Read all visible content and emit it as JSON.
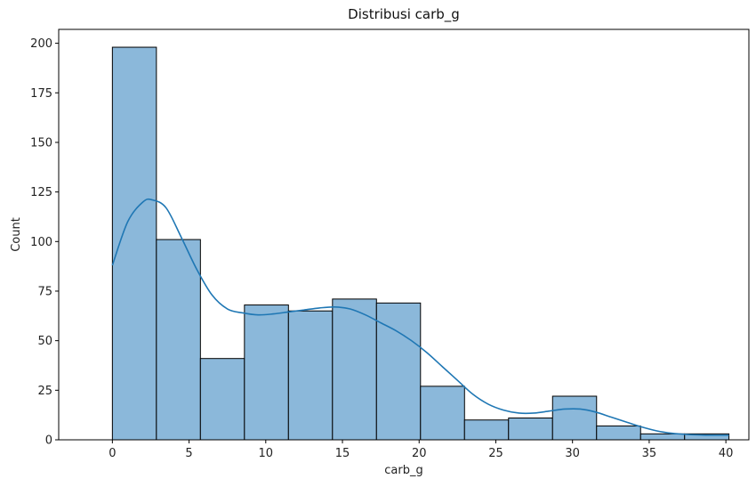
{
  "chart_data": {
    "type": "bar",
    "title": "Distribusi carb_g",
    "xlabel": "carb_g",
    "ylabel": "Count",
    "xlim": [
      -3.5,
      41.5
    ],
    "ylim": [
      0,
      207
    ],
    "xticks": [
      0,
      5,
      10,
      15,
      20,
      25,
      30,
      35,
      40
    ],
    "yticks": [
      0,
      25,
      50,
      75,
      100,
      125,
      150,
      175,
      200
    ],
    "grid": false,
    "bar_color": "#8bb8da",
    "edge_color": "#000000",
    "kde_color": "#1f77b4",
    "bins": [
      {
        "x0": 0.0,
        "x1": 2.87,
        "count": 198
      },
      {
        "x0": 2.87,
        "x1": 5.74,
        "count": 101
      },
      {
        "x0": 5.74,
        "x1": 8.61,
        "count": 41
      },
      {
        "x0": 8.61,
        "x1": 11.48,
        "count": 68
      },
      {
        "x0": 11.48,
        "x1": 14.35,
        "count": 65
      },
      {
        "x0": 14.35,
        "x1": 17.22,
        "count": 71
      },
      {
        "x0": 17.22,
        "x1": 20.09,
        "count": 69
      },
      {
        "x0": 20.09,
        "x1": 22.96,
        "count": 27
      },
      {
        "x0": 22.96,
        "x1": 25.83,
        "count": 10
      },
      {
        "x0": 25.83,
        "x1": 28.7,
        "count": 11
      },
      {
        "x0": 28.7,
        "x1": 31.57,
        "count": 22
      },
      {
        "x0": 31.57,
        "x1": 34.44,
        "count": 7
      },
      {
        "x0": 34.44,
        "x1": 37.31,
        "count": 3
      },
      {
        "x0": 37.31,
        "x1": 40.2,
        "count": 3
      }
    ],
    "kde": {
      "x": [
        0,
        1,
        2,
        2.6,
        3.5,
        4.5,
        5.5,
        6.5,
        7.5,
        8.5,
        9.5,
        10.5,
        11.5,
        12.5,
        13.5,
        14.5,
        15.5,
        16.5,
        17.5,
        18.5,
        19.5,
        20.5,
        21.5,
        22.5,
        23.5,
        24.5,
        25.5,
        26.5,
        27.5,
        28.5,
        29.5,
        30.5,
        31.5,
        32.5,
        33.5,
        34.5,
        35.5,
        36.5,
        37.5,
        38.5,
        39.5,
        40.2
      ],
      "y": [
        88,
        110,
        120,
        121,
        117,
        102,
        86,
        73,
        66,
        64,
        63,
        63.5,
        64.5,
        65.5,
        66.5,
        67,
        66,
        63,
        59,
        55,
        50,
        44,
        37,
        30,
        23,
        18,
        15,
        13.5,
        13.5,
        14.5,
        15.5,
        15.5,
        14,
        11.5,
        9,
        6.5,
        4.5,
        3.3,
        2.7,
        2.4,
        2.3,
        2.3
      ]
    }
  }
}
